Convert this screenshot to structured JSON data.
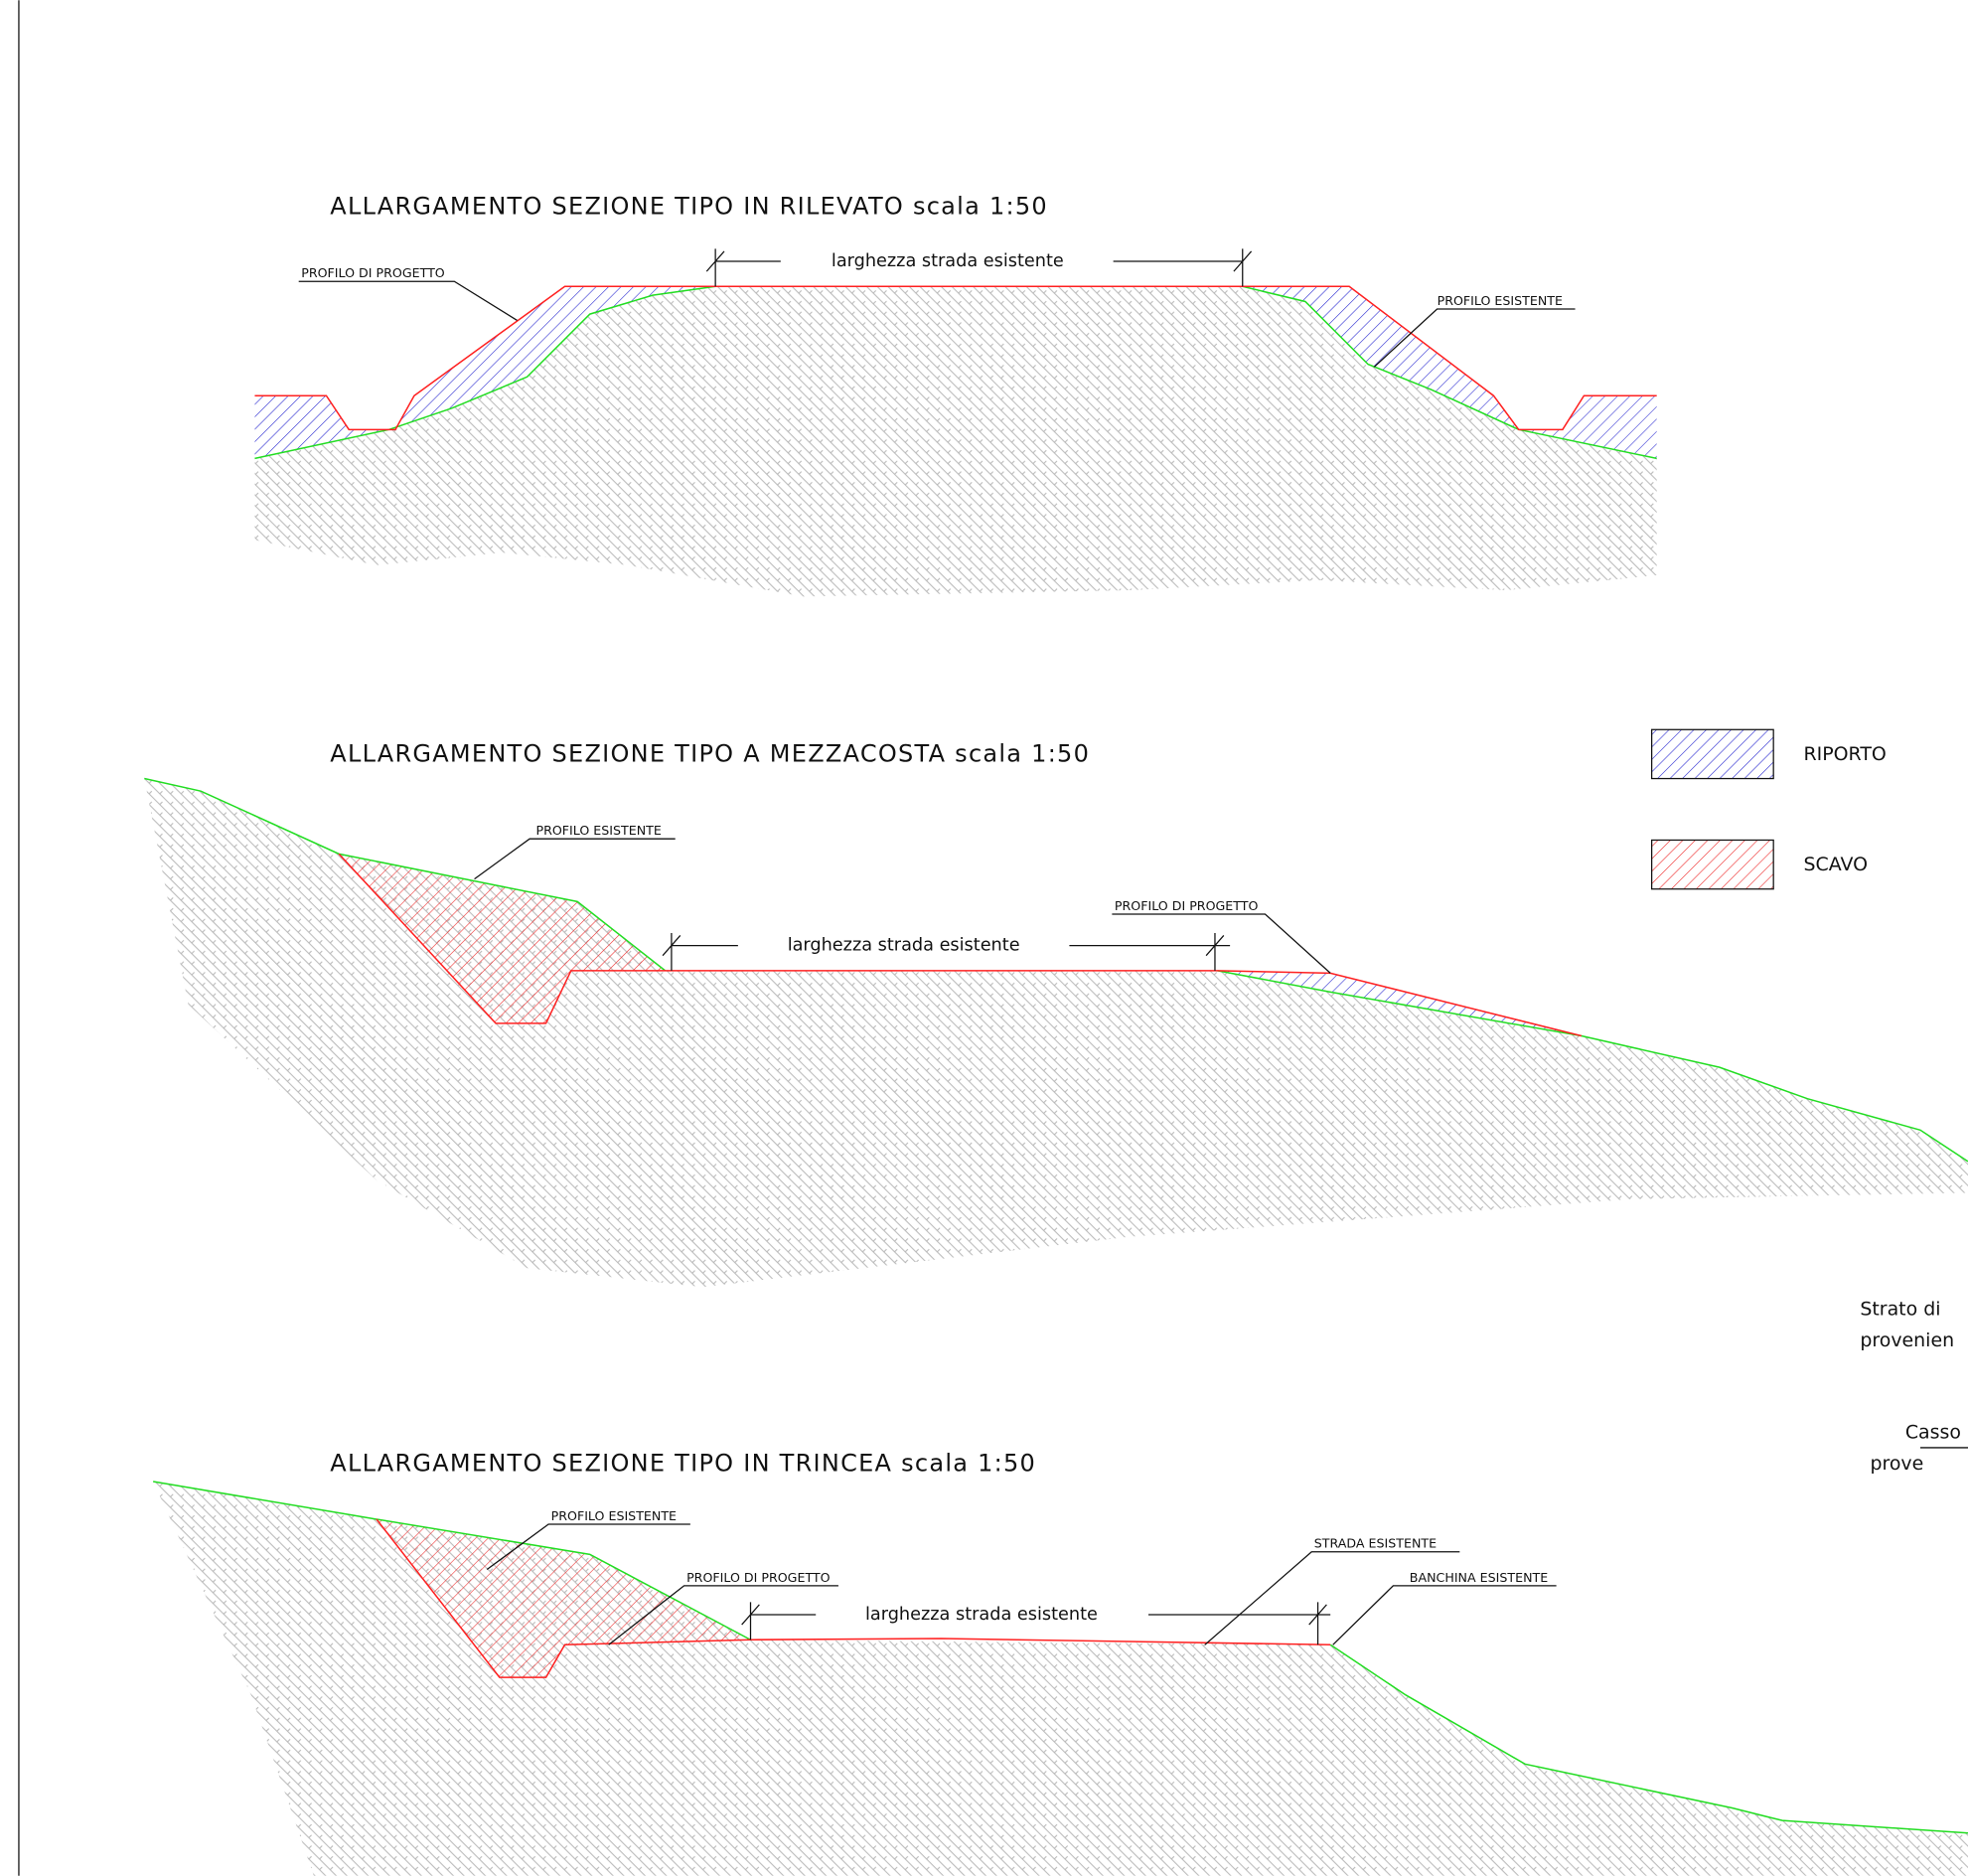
{
  "sections": [
    {
      "title": "ALLARGAMENTO SEZIONE TIPO IN RILEVATO scala 1:50",
      "dimension": "larghezza strada esistente",
      "labels": [
        "PROFILO DI PROGETTO",
        "PROFILO ESISTENTE"
      ]
    },
    {
      "title": "ALLARGAMENTO SEZIONE TIPO A MEZZACOSTA scala 1:50",
      "dimension": "larghezza strada esistente",
      "labels": [
        "PROFILO ESISTENTE",
        "PROFILO DI PROGETTO"
      ]
    },
    {
      "title": "ALLARGAMENTO SEZIONE TIPO IN TRINCEA scala 1:50",
      "dimension": "larghezza strada esistente",
      "labels": [
        "PROFILO ESISTENTE",
        "PROFILO DI PROGETTO",
        "STRADA ESISTENTE",
        "BANCHINA ESISTENTE"
      ]
    }
  ],
  "legend": [
    "RIPORTO",
    "SCAVO"
  ],
  "side_notes": [
    "Strato di",
    "provenien",
    "Casso",
    "prove"
  ]
}
